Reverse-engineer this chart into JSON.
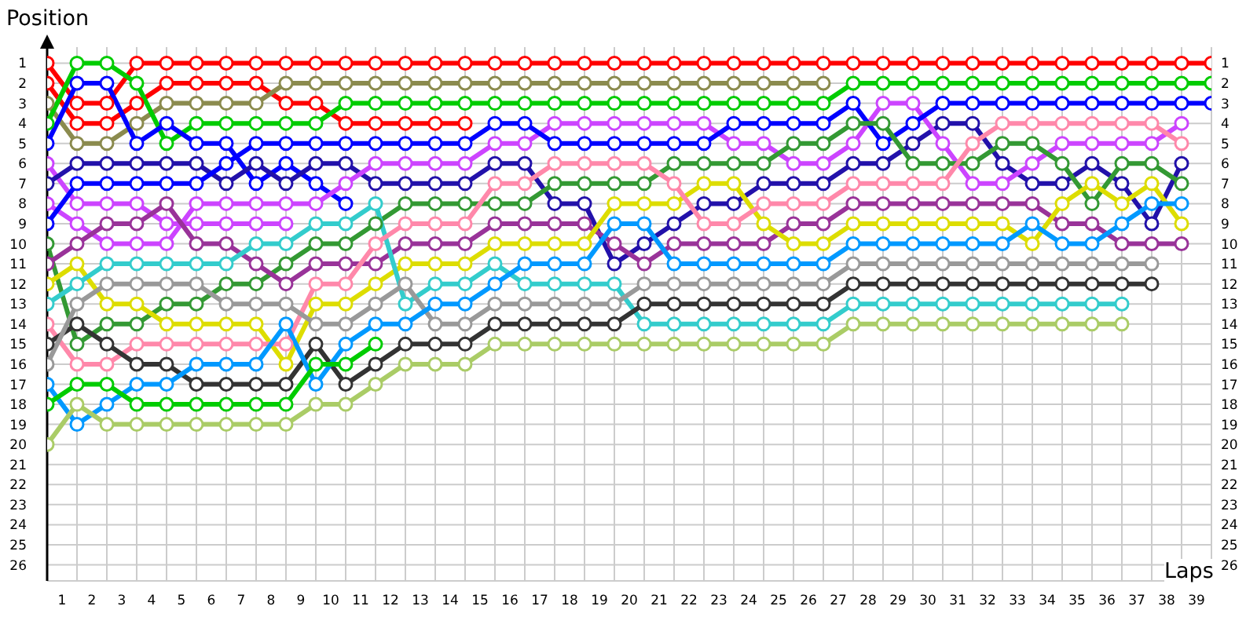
{
  "chart_data": {
    "type": "line",
    "xlabel": "Laps",
    "ylabel": "Position",
    "x": [
      0,
      1,
      2,
      3,
      4,
      5,
      6,
      7,
      8,
      9,
      10,
      11,
      12,
      13,
      14,
      15,
      16,
      17,
      18,
      19,
      20,
      21,
      22,
      23,
      24,
      25,
      26,
      27,
      28,
      29,
      30,
      31,
      32,
      33,
      34,
      35,
      36,
      37,
      38,
      39
    ],
    "xlim": [
      0,
      39
    ],
    "xticks": [
      {
        "value": 0.5,
        "label": "1"
      },
      {
        "value": 1.5,
        "label": "2"
      },
      {
        "value": 2.5,
        "label": "3"
      },
      {
        "value": 3.5,
        "label": "4"
      },
      {
        "value": 4.5,
        "label": "5"
      },
      {
        "value": 5.5,
        "label": "6"
      },
      {
        "value": 6.5,
        "label": "7"
      },
      {
        "value": 7.5,
        "label": "8"
      },
      {
        "value": 8.5,
        "label": "9"
      },
      {
        "value": 9.5,
        "label": "10"
      },
      {
        "value": 10.5,
        "label": "11"
      },
      {
        "value": 11.5,
        "label": "12"
      },
      {
        "value": 12.5,
        "label": "13"
      },
      {
        "value": 13.5,
        "label": "14"
      },
      {
        "value": 14.5,
        "label": "15"
      },
      {
        "value": 15.5,
        "label": "16"
      },
      {
        "value": 16.5,
        "label": "17"
      },
      {
        "value": 17.5,
        "label": "18"
      },
      {
        "value": 18.5,
        "label": "19"
      },
      {
        "value": 19.5,
        "label": "20"
      },
      {
        "value": 20.5,
        "label": "21"
      },
      {
        "value": 21.5,
        "label": "22"
      },
      {
        "value": 22.5,
        "label": "23"
      },
      {
        "value": 23.5,
        "label": "24"
      },
      {
        "value": 24.5,
        "label": "25"
      },
      {
        "value": 25.5,
        "label": "26"
      },
      {
        "value": 26.5,
        "label": "27"
      },
      {
        "value": 27.5,
        "label": "28"
      },
      {
        "value": 28.5,
        "label": "29"
      },
      {
        "value": 29.5,
        "label": "30"
      },
      {
        "value": 30.5,
        "label": "31"
      },
      {
        "value": 31.5,
        "label": "32"
      },
      {
        "value": 32.5,
        "label": "33"
      },
      {
        "value": 33.5,
        "label": "34"
      },
      {
        "value": 34.5,
        "label": "35"
      },
      {
        "value": 35.5,
        "label": "36"
      },
      {
        "value": 36.5,
        "label": "37"
      },
      {
        "value": 37.5,
        "label": "38"
      },
      {
        "value": 38.5,
        "label": "39"
      }
    ],
    "ylim": [
      26.8,
      0.2
    ],
    "yticks": [
      1,
      2,
      3,
      4,
      5,
      6,
      7,
      8,
      9,
      10,
      11,
      12,
      13,
      14,
      15,
      16,
      17,
      18,
      19,
      20,
      21,
      22,
      23,
      24,
      25,
      26
    ],
    "y2lim": [
      26.8,
      0.2
    ],
    "y2ticks": [
      1,
      2,
      3,
      4,
      5,
      6,
      7,
      8,
      9,
      10,
      11,
      12,
      13,
      14,
      15,
      16,
      17,
      18,
      19,
      20,
      21,
      22,
      23,
      24,
      25,
      26
    ],
    "grid": true,
    "marker": "circle",
    "series": [
      {
        "color": "#ff0000",
        "values": [
          1,
          3,
          3,
          1,
          1,
          1,
          1,
          1,
          1,
          1,
          1,
          1,
          1,
          1,
          1,
          1,
          1,
          1,
          1,
          1,
          1,
          1,
          1,
          1,
          1,
          1,
          1,
          1,
          1,
          1,
          1,
          1,
          1,
          1,
          1,
          1,
          1,
          1,
          1,
          1
        ]
      },
      {
        "color": "#ff0000",
        "values": [
          2,
          4,
          4,
          3,
          2,
          2,
          2,
          2,
          3,
          3,
          4,
          4,
          4,
          4,
          4,
          null,
          null,
          null,
          null,
          null,
          null,
          null,
          null,
          null,
          null,
          null,
          null,
          null,
          null,
          null,
          null,
          null,
          null,
          null,
          null,
          null,
          null,
          null,
          null,
          null
        ]
      },
      {
        "color": "#8b8b4e",
        "values": [
          3,
          5,
          5,
          4,
          3,
          3,
          3,
          3,
          2,
          2,
          2,
          2,
          2,
          2,
          2,
          2,
          2,
          2,
          2,
          2,
          2,
          2,
          2,
          2,
          2,
          2,
          2,
          null,
          null,
          null,
          null,
          null,
          null,
          null,
          null,
          null,
          null,
          null,
          null,
          null
        ]
      },
      {
        "color": "#00cc00",
        "values": [
          4,
          1,
          1,
          2,
          5,
          4,
          4,
          4,
          4,
          4,
          3,
          3,
          3,
          3,
          3,
          3,
          3,
          3,
          3,
          3,
          3,
          3,
          3,
          3,
          3,
          3,
          3,
          2,
          2,
          2,
          2,
          2,
          2,
          2,
          2,
          2,
          2,
          2,
          2,
          2
        ]
      },
      {
        "color": "#0000ff",
        "values": [
          5,
          2,
          2,
          5,
          4,
          5,
          5,
          7,
          6,
          7,
          8,
          null,
          null,
          null,
          null,
          null,
          null,
          null,
          null,
          null,
          null,
          null,
          null,
          null,
          null,
          null,
          null,
          null,
          null,
          null,
          null,
          null,
          null,
          null,
          null,
          null,
          null,
          null,
          null,
          null
        ]
      },
      {
        "color": "#cc44ff",
        "values": [
          6,
          8,
          8,
          8,
          9,
          9,
          9,
          9,
          9,
          null,
          null,
          null,
          null,
          null,
          null,
          null,
          null,
          null,
          null,
          null,
          null,
          null,
          null,
          null,
          null,
          null,
          null,
          null,
          null,
          null,
          null,
          null,
          null,
          null,
          null,
          null,
          null,
          null,
          null,
          null
        ]
      },
      {
        "color": "#2211aa",
        "values": [
          7,
          6,
          6,
          6,
          6,
          6,
          7,
          6,
          7,
          6,
          6,
          7,
          7,
          7,
          7,
          6,
          6,
          8,
          8,
          11,
          10,
          9,
          8,
          8,
          7,
          7,
          7,
          6,
          6,
          5,
          4,
          4,
          6,
          7,
          7,
          6,
          7,
          9,
          6,
          null
        ]
      },
      {
        "color": "#cc44ff",
        "values": [
          8,
          9,
          10,
          10,
          10,
          8,
          8,
          8,
          8,
          8,
          7,
          6,
          6,
          6,
          6,
          5,
          5,
          4,
          4,
          4,
          4,
          4,
          4,
          5,
          5,
          6,
          6,
          5,
          3,
          3,
          5,
          7,
          7,
          6,
          5,
          5,
          5,
          5,
          4,
          null
        ]
      },
      {
        "color": "#0000ff",
        "values": [
          9,
          7,
          7,
          7,
          7,
          7,
          6,
          5,
          5,
          5,
          5,
          5,
          5,
          5,
          5,
          4,
          4,
          5,
          5,
          5,
          5,
          5,
          5,
          4,
          4,
          4,
          4,
          3,
          5,
          4,
          3,
          3,
          3,
          3,
          3,
          3,
          3,
          3,
          3,
          3
        ]
      },
      {
        "color": "#339933",
        "values": [
          10,
          15,
          14,
          14,
          13,
          13,
          12,
          12,
          11,
          10,
          10,
          9,
          8,
          8,
          8,
          8,
          8,
          7,
          7,
          7,
          7,
          6,
          6,
          6,
          6,
          5,
          5,
          4,
          4,
          6,
          6,
          6,
          5,
          5,
          6,
          8,
          6,
          6,
          7,
          null
        ]
      },
      {
        "color": "#993399",
        "values": [
          11,
          10,
          9,
          9,
          8,
          10,
          10,
          11,
          12,
          11,
          11,
          11,
          10,
          10,
          10,
          9,
          9,
          9,
          9,
          10,
          11,
          10,
          10,
          10,
          10,
          9,
          9,
          8,
          8,
          8,
          8,
          8,
          8,
          8,
          9,
          9,
          10,
          10,
          10,
          null
        ]
      },
      {
        "color": "#dddd00",
        "values": [
          12,
          11,
          13,
          13,
          14,
          14,
          14,
          14,
          16,
          13,
          13,
          12,
          11,
          11,
          11,
          10,
          10,
          10,
          10,
          8,
          8,
          8,
          7,
          7,
          9,
          10,
          10,
          9,
          9,
          9,
          9,
          9,
          9,
          10,
          8,
          7,
          8,
          7,
          9,
          null
        ]
      },
      {
        "color": "#33cccc",
        "values": [
          13,
          12,
          11,
          11,
          11,
          11,
          11,
          10,
          10,
          9,
          9,
          8,
          13,
          12,
          12,
          11,
          12,
          12,
          12,
          12,
          14,
          14,
          14,
          14,
          14,
          14,
          14,
          13,
          13,
          13,
          13,
          13,
          13,
          13,
          13,
          13,
          13,
          null,
          null,
          null
        ]
      },
      {
        "color": "#ff88aa",
        "values": [
          14,
          16,
          16,
          15,
          15,
          15,
          15,
          15,
          15,
          12,
          12,
          10,
          9,
          9,
          9,
          7,
          7,
          6,
          6,
          6,
          6,
          7,
          9,
          9,
          8,
          8,
          8,
          7,
          7,
          7,
          7,
          5,
          4,
          4,
          4,
          4,
          4,
          4,
          5,
          null
        ]
      },
      {
        "color": "#333333",
        "values": [
          15,
          14,
          15,
          16,
          16,
          17,
          17,
          17,
          17,
          15,
          17,
          16,
          15,
          15,
          15,
          14,
          14,
          14,
          14,
          14,
          13,
          13,
          13,
          13,
          13,
          13,
          13,
          12,
          12,
          12,
          12,
          12,
          12,
          12,
          12,
          12,
          12,
          12,
          null,
          null
        ]
      },
      {
        "color": "#999999",
        "values": [
          16,
          13,
          12,
          12,
          12,
          12,
          13,
          13,
          13,
          14,
          14,
          13,
          12,
          14,
          14,
          13,
          13,
          13,
          13,
          13,
          12,
          12,
          12,
          12,
          12,
          12,
          12,
          11,
          11,
          11,
          11,
          11,
          11,
          11,
          11,
          11,
          11,
          11,
          null,
          null
        ]
      },
      {
        "color": "#0099ff",
        "values": [
          17,
          19,
          18,
          17,
          17,
          16,
          16,
          16,
          14,
          17,
          15,
          14,
          14,
          13,
          13,
          12,
          11,
          11,
          11,
          9,
          9,
          11,
          11,
          11,
          11,
          11,
          11,
          10,
          10,
          10,
          10,
          10,
          10,
          9,
          10,
          10,
          9,
          8,
          8,
          null
        ]
      },
      {
        "color": "#00cc00",
        "values": [
          18,
          17,
          17,
          18,
          18,
          18,
          18,
          18,
          18,
          16,
          16,
          15,
          null,
          null,
          null,
          null,
          null,
          null,
          null,
          null,
          null,
          null,
          null,
          null,
          null,
          null,
          null,
          null,
          null,
          null,
          null,
          null,
          null,
          null,
          null,
          null,
          null,
          null,
          null,
          null
        ]
      },
      {
        "color": "#aacc66",
        "values": [
          20,
          18,
          19,
          19,
          19,
          19,
          19,
          19,
          19,
          18,
          18,
          17,
          16,
          16,
          16,
          15,
          15,
          15,
          15,
          15,
          15,
          15,
          15,
          15,
          15,
          15,
          15,
          14,
          14,
          14,
          14,
          14,
          14,
          14,
          14,
          14,
          14,
          null,
          null,
          null
        ]
      }
    ]
  }
}
